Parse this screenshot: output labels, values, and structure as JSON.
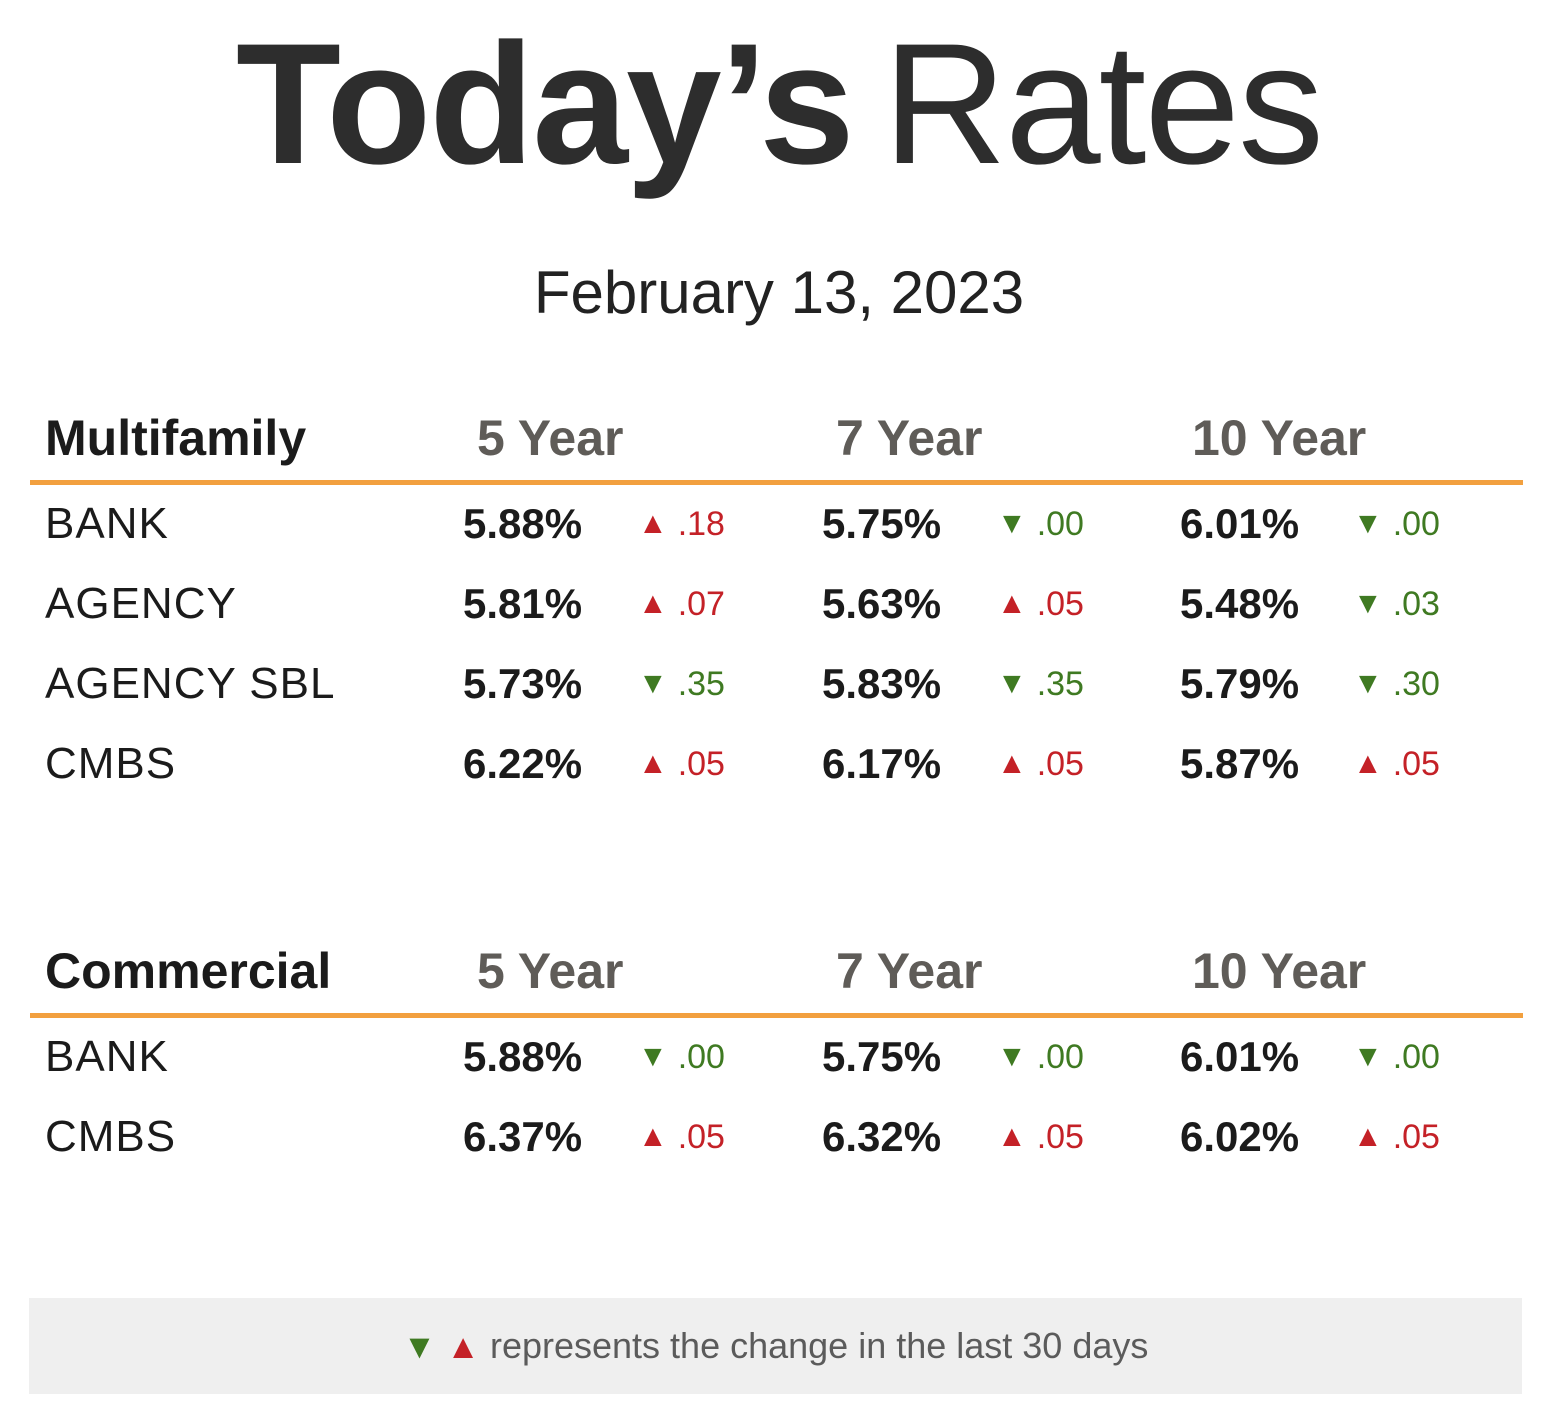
{
  "title": {
    "bold": "Today’s",
    "light": "Rates"
  },
  "date": "February 13, 2023",
  "terms": [
    "5 Year",
    "7 Year",
    "10 Year"
  ],
  "colors": {
    "up": "#c42127",
    "down": "#3f7a22",
    "accent": "#f2a03f"
  },
  "arrows": {
    "up": "▲",
    "down": "▼"
  },
  "multifamily": {
    "heading": "Multifamily",
    "rows": [
      {
        "label": "BANK",
        "cells": [
          {
            "rate": "5.88%",
            "dir": "up",
            "change": ".18"
          },
          {
            "rate": "5.75%",
            "dir": "down",
            "change": ".00"
          },
          {
            "rate": "6.01%",
            "dir": "down",
            "change": ".00"
          }
        ]
      },
      {
        "label": "AGENCY",
        "cells": [
          {
            "rate": "5.81%",
            "dir": "up",
            "change": ".07"
          },
          {
            "rate": "5.63%",
            "dir": "up",
            "change": ".05"
          },
          {
            "rate": "5.48%",
            "dir": "down",
            "change": ".03"
          }
        ]
      },
      {
        "label": "AGENCY SBL",
        "cells": [
          {
            "rate": "5.73%",
            "dir": "down",
            "change": ".35"
          },
          {
            "rate": "5.83%",
            "dir": "down",
            "change": ".35"
          },
          {
            "rate": "5.79%",
            "dir": "down",
            "change": ".30"
          }
        ]
      },
      {
        "label": "CMBS",
        "cells": [
          {
            "rate": "6.22%",
            "dir": "up",
            "change": ".05"
          },
          {
            "rate": "6.17%",
            "dir": "up",
            "change": ".05"
          },
          {
            "rate": "5.87%",
            "dir": "up",
            "change": ".05"
          }
        ]
      }
    ]
  },
  "commercial": {
    "heading": "Commercial",
    "rows": [
      {
        "label": "BANK",
        "cells": [
          {
            "rate": "5.88%",
            "dir": "down",
            "change": ".00"
          },
          {
            "rate": "5.75%",
            "dir": "down",
            "change": ".00"
          },
          {
            "rate": "6.01%",
            "dir": "down",
            "change": ".00"
          }
        ]
      },
      {
        "label": "CMBS",
        "cells": [
          {
            "rate": "6.37%",
            "dir": "up",
            "change": ".05"
          },
          {
            "rate": "6.32%",
            "dir": "up",
            "change": ".05"
          },
          {
            "rate": "6.02%",
            "dir": "up",
            "change": ".05"
          }
        ]
      }
    ]
  },
  "footer": {
    "down_arrow": "▼",
    "up_arrow": "▲",
    "text": "represents the change in the last 30 days"
  }
}
